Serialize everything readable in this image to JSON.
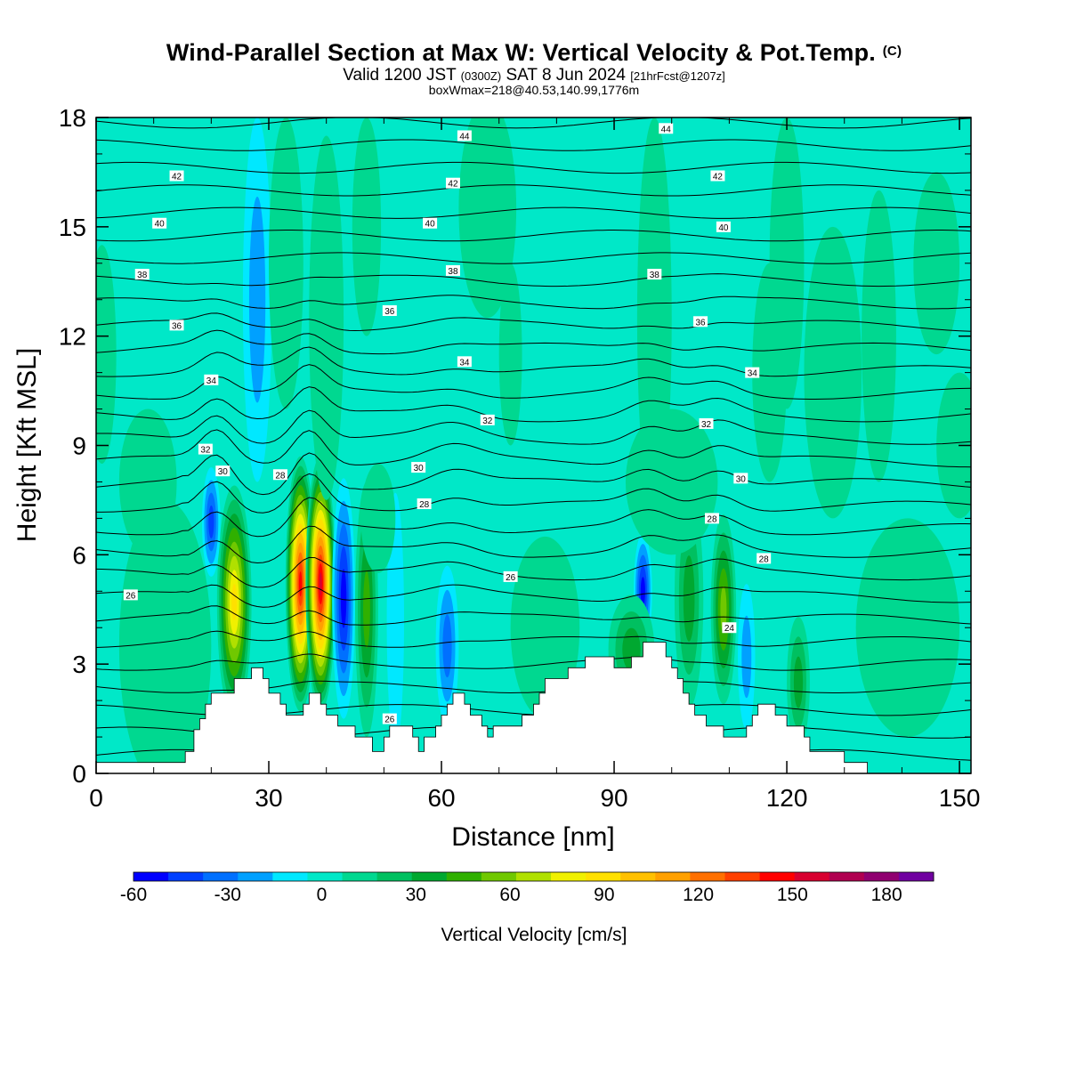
{
  "title": {
    "main": "Wind-Parallel Section at Max W: Vertical Velocity & Pot.Temp.",
    "copyright": "(C)",
    "valid_prefix": "Valid 1200 JST",
    "valid_utc": "(0300Z)",
    "valid_date": "SAT 8 Jun 2024",
    "forecast": "[21hrFcst@1207z]",
    "boxinfo": "boxWmax=218@40.53,140.99,1776m"
  },
  "colors": {
    "background_field": "#00e8c8",
    "terrain": "#ffffff",
    "isentrope": "#000000"
  },
  "chart_data": {
    "type": "heatmap",
    "xlabel": "Distance [nm]",
    "ylabel": "Height [Kft MSL]",
    "x_ticks": [
      "0",
      "30",
      "60",
      "90",
      "120",
      "150"
    ],
    "y_ticks": [
      "0",
      "3",
      "6",
      "9",
      "12",
      "15",
      "18"
    ],
    "xlim": [
      0,
      152
    ],
    "ylim": [
      0,
      18
    ],
    "colorbar": {
      "label": "Vertical Velocity [cm/s]",
      "tick_labels": [
        "-60",
        "-30",
        "0",
        "30",
        "60",
        "90",
        "120",
        "150",
        "180"
      ],
      "range": [
        -60,
        195
      ],
      "colors": [
        "#0000ff",
        "#0040ff",
        "#0070ff",
        "#00a0ff",
        "#00e8ff",
        "#00e8c8",
        "#00d890",
        "#00c060",
        "#00a830",
        "#30b000",
        "#70c800",
        "#b0e000",
        "#f0f000",
        "#ffe000",
        "#ffc000",
        "#ffa000",
        "#ff7000",
        "#ff4000",
        "#ff0000",
        "#d80030",
        "#b00050",
        "#900070",
        "#7000a0"
      ]
    },
    "isentrope_labels": [
      {
        "x": 64,
        "z": 17.5,
        "text": "44"
      },
      {
        "x": 99,
        "z": 17.7,
        "text": "44"
      },
      {
        "x": 14,
        "z": 16.4,
        "text": "42"
      },
      {
        "x": 62,
        "z": 16.2,
        "text": "42"
      },
      {
        "x": 108,
        "z": 16.4,
        "text": "42"
      },
      {
        "x": 11,
        "z": 15.1,
        "text": "40"
      },
      {
        "x": 58,
        "z": 15.1,
        "text": "40"
      },
      {
        "x": 109,
        "z": 15.0,
        "text": "40"
      },
      {
        "x": 8,
        "z": 13.7,
        "text": "38"
      },
      {
        "x": 62,
        "z": 13.8,
        "text": "38"
      },
      {
        "x": 97,
        "z": 13.7,
        "text": "38"
      },
      {
        "x": 14,
        "z": 12.3,
        "text": "36"
      },
      {
        "x": 51,
        "z": 12.7,
        "text": "36"
      },
      {
        "x": 105,
        "z": 12.4,
        "text": "36"
      },
      {
        "x": 20,
        "z": 10.8,
        "text": "34"
      },
      {
        "x": 64,
        "z": 11.3,
        "text": "34"
      },
      {
        "x": 114,
        "z": 11.0,
        "text": "34"
      },
      {
        "x": 19,
        "z": 8.9,
        "text": "32"
      },
      {
        "x": 68,
        "z": 9.7,
        "text": "32"
      },
      {
        "x": 106,
        "z": 9.6,
        "text": "32"
      },
      {
        "x": 22,
        "z": 8.3,
        "text": "30"
      },
      {
        "x": 56,
        "z": 8.4,
        "text": "30"
      },
      {
        "x": 112,
        "z": 8.1,
        "text": "30"
      },
      {
        "x": 32,
        "z": 8.2,
        "text": "28"
      },
      {
        "x": 57,
        "z": 7.4,
        "text": "28"
      },
      {
        "x": 107,
        "z": 7.0,
        "text": "28"
      },
      {
        "x": 116,
        "z": 5.9,
        "text": "28"
      },
      {
        "x": 6,
        "z": 4.9,
        "text": "26"
      },
      {
        "x": 72,
        "z": 5.4,
        "text": "26"
      },
      {
        "x": 110,
        "z": 4.0,
        "text": "24"
      },
      {
        "x": 51,
        "z": 1.5,
        "text": "26"
      }
    ],
    "terrain_profile": [
      [
        0,
        0.3
      ],
      [
        15.5,
        0.3
      ],
      [
        15.5,
        0.6
      ],
      [
        17,
        0.6
      ],
      [
        17,
        1.2
      ],
      [
        18,
        1.2
      ],
      [
        18,
        1.5
      ],
      [
        19,
        1.5
      ],
      [
        19,
        1.9
      ],
      [
        20,
        1.9
      ],
      [
        20,
        2.2
      ],
      [
        24,
        2.2
      ],
      [
        24,
        2.6
      ],
      [
        27,
        2.6
      ],
      [
        27,
        2.9
      ],
      [
        29,
        2.9
      ],
      [
        29,
        2.6
      ],
      [
        30,
        2.6
      ],
      [
        30,
        2.2
      ],
      [
        32,
        2.2
      ],
      [
        32,
        1.9
      ],
      [
        33,
        1.9
      ],
      [
        33,
        1.6
      ],
      [
        36,
        1.6
      ],
      [
        36,
        1.9
      ],
      [
        37,
        1.9
      ],
      [
        37,
        2.2
      ],
      [
        39,
        2.2
      ],
      [
        39,
        1.9
      ],
      [
        40,
        1.9
      ],
      [
        40,
        1.6
      ],
      [
        42,
        1.6
      ],
      [
        42,
        1.3
      ],
      [
        45,
        1.3
      ],
      [
        45,
        1.0
      ],
      [
        48,
        1.0
      ],
      [
        48,
        0.6
      ],
      [
        50,
        0.6
      ],
      [
        50,
        1.0
      ],
      [
        51,
        1.0
      ],
      [
        51,
        1.3
      ],
      [
        55,
        1.3
      ],
      [
        55,
        1.0
      ],
      [
        56,
        1.0
      ],
      [
        56,
        0.6
      ],
      [
        57,
        0.6
      ],
      [
        57,
        1.0
      ],
      [
        59,
        1.0
      ],
      [
        59,
        1.3
      ],
      [
        60,
        1.3
      ],
      [
        60,
        1.6
      ],
      [
        61,
        1.6
      ],
      [
        61,
        1.9
      ],
      [
        62,
        1.9
      ],
      [
        62,
        2.2
      ],
      [
        64,
        2.2
      ],
      [
        64,
        1.9
      ],
      [
        65,
        1.9
      ],
      [
        65,
        1.6
      ],
      [
        67,
        1.6
      ],
      [
        67,
        1.3
      ],
      [
        68,
        1.3
      ],
      [
        68,
        1.0
      ],
      [
        69,
        1.0
      ],
      [
        69,
        1.3
      ],
      [
        74,
        1.3
      ],
      [
        74,
        1.6
      ],
      [
        76,
        1.6
      ],
      [
        76,
        1.9
      ],
      [
        77,
        1.9
      ],
      [
        77,
        2.2
      ],
      [
        78,
        2.2
      ],
      [
        78,
        2.6
      ],
      [
        82,
        2.6
      ],
      [
        82,
        2.9
      ],
      [
        85,
        2.9
      ],
      [
        85,
        3.2
      ],
      [
        90,
        3.2
      ],
      [
        90,
        2.9
      ],
      [
        93,
        2.9
      ],
      [
        93,
        3.2
      ],
      [
        95,
        3.2
      ],
      [
        95,
        3.6
      ],
      [
        99,
        3.6
      ],
      [
        99,
        3.2
      ],
      [
        100,
        3.2
      ],
      [
        100,
        2.9
      ],
      [
        101,
        2.9
      ],
      [
        101,
        2.6
      ],
      [
        102,
        2.6
      ],
      [
        102,
        2.2
      ],
      [
        103,
        2.2
      ],
      [
        103,
        1.9
      ],
      [
        104,
        1.9
      ],
      [
        104,
        1.6
      ],
      [
        106,
        1.6
      ],
      [
        106,
        1.3
      ],
      [
        109,
        1.3
      ],
      [
        109,
        1.0
      ],
      [
        113,
        1.0
      ],
      [
        113,
        1.3
      ],
      [
        114,
        1.3
      ],
      [
        114,
        1.6
      ],
      [
        115,
        1.6
      ],
      [
        115,
        1.9
      ],
      [
        118,
        1.9
      ],
      [
        118,
        1.6
      ],
      [
        120,
        1.6
      ],
      [
        120,
        1.3
      ],
      [
        123,
        1.3
      ],
      [
        123,
        1.0
      ],
      [
        124,
        1.0
      ],
      [
        124,
        0.6
      ],
      [
        127,
        0.6
      ],
      [
        127,
        0.6
      ],
      [
        130,
        0.6
      ],
      [
        130,
        0.3
      ],
      [
        134,
        0.3
      ],
      [
        134,
        0
      ],
      [
        152,
        0
      ]
    ],
    "w_features": [
      {
        "x": 24,
        "z": 4.7,
        "hw": 3.0,
        "hh": 3.2,
        "value": 85
      },
      {
        "x": 35.5,
        "z": 5.2,
        "hw": 2.6,
        "hh": 3.5,
        "value": 150
      },
      {
        "x": 39,
        "z": 5.2,
        "hw": 2.6,
        "hh": 3.5,
        "value": 160
      },
      {
        "x": 43,
        "z": 4.8,
        "hw": 2.0,
        "hh": 3.3,
        "value": -60
      },
      {
        "x": 47,
        "z": 4.5,
        "hw": 2.0,
        "hh": 3.5,
        "value": 50
      },
      {
        "x": 20,
        "z": 6.9,
        "hw": 1.6,
        "hh": 1.5,
        "value": -45
      },
      {
        "x": 52,
        "z": 4.2,
        "hw": 1.5,
        "hh": 3.5,
        "value": -15
      },
      {
        "x": 61,
        "z": 3.5,
        "hw": 2.0,
        "hh": 2.2,
        "value": -35
      },
      {
        "x": 95,
        "z": 5.0,
        "hw": 1.6,
        "hh": 1.6,
        "value": -50
      },
      {
        "x": 103,
        "z": 4.8,
        "hw": 2.5,
        "hh": 3.0,
        "value": 30
      },
      {
        "x": 109,
        "z": 4.5,
        "hw": 2.2,
        "hh": 2.6,
        "value": 55
      },
      {
        "x": 113,
        "z": 3.2,
        "hw": 1.5,
        "hh": 2.0,
        "value": -20
      },
      {
        "x": 93,
        "z": 3.4,
        "hw": 4.0,
        "hh": 1.5,
        "value": 30
      },
      {
        "x": 78,
        "z": 4.0,
        "hw": 6.0,
        "hh": 2.5,
        "value": 15
      },
      {
        "x": 122,
        "z": 2.5,
        "hw": 2.0,
        "hh": 1.8,
        "value": 30
      },
      {
        "x": 141,
        "z": 4.0,
        "hw": 9.0,
        "hh": 3.0,
        "value": 12
      },
      {
        "x": 12,
        "z": 3.5,
        "hw": 8.0,
        "hh": 4.0,
        "value": 10
      },
      {
        "x": 1,
        "z": 11.5,
        "hw": 2.5,
        "hh": 3.0,
        "value": 12
      },
      {
        "x": 9,
        "z": 8.0,
        "hw": 5.0,
        "hh": 2.0,
        "value": 8
      },
      {
        "x": 28,
        "z": 13.0,
        "hw": 2.5,
        "hh": 5.0,
        "value": -20
      },
      {
        "x": 33,
        "z": 14.0,
        "hw": 3.0,
        "hh": 4.0,
        "value": 12
      },
      {
        "x": 40,
        "z": 12.5,
        "hw": 3.0,
        "hh": 5.0,
        "value": 12
      },
      {
        "x": 47,
        "z": 15.0,
        "hw": 2.5,
        "hh": 3.0,
        "value": 12
      },
      {
        "x": 49,
        "z": 7.0,
        "hw": 3.0,
        "hh": 1.5,
        "value": 10
      },
      {
        "x": 68,
        "z": 15.5,
        "hw": 5.0,
        "hh": 3.0,
        "value": 12
      },
      {
        "x": 72,
        "z": 11.5,
        "hw": 2.0,
        "hh": 2.5,
        "value": 10
      },
      {
        "x": 97,
        "z": 12.5,
        "hw": 3.0,
        "hh": 5.5,
        "value": 12
      },
      {
        "x": 100,
        "z": 8.0,
        "hw": 8.0,
        "hh": 2.0,
        "value": 10
      },
      {
        "x": 117,
        "z": 11.0,
        "hw": 3.0,
        "hh": 3.0,
        "value": 12
      },
      {
        "x": 120,
        "z": 14.0,
        "hw": 3.0,
        "hh": 4.0,
        "value": 10
      },
      {
        "x": 128,
        "z": 11.0,
        "hw": 5.0,
        "hh": 4.0,
        "value": 12
      },
      {
        "x": 136,
        "z": 12.0,
        "hw": 3.0,
        "hh": 4.0,
        "value": 10
      },
      {
        "x": 146,
        "z": 14.0,
        "hw": 4.0,
        "hh": 2.5,
        "value": 12
      },
      {
        "x": 150,
        "z": 9.0,
        "hw": 4.0,
        "hh": 2.0,
        "value": 10
      }
    ]
  }
}
